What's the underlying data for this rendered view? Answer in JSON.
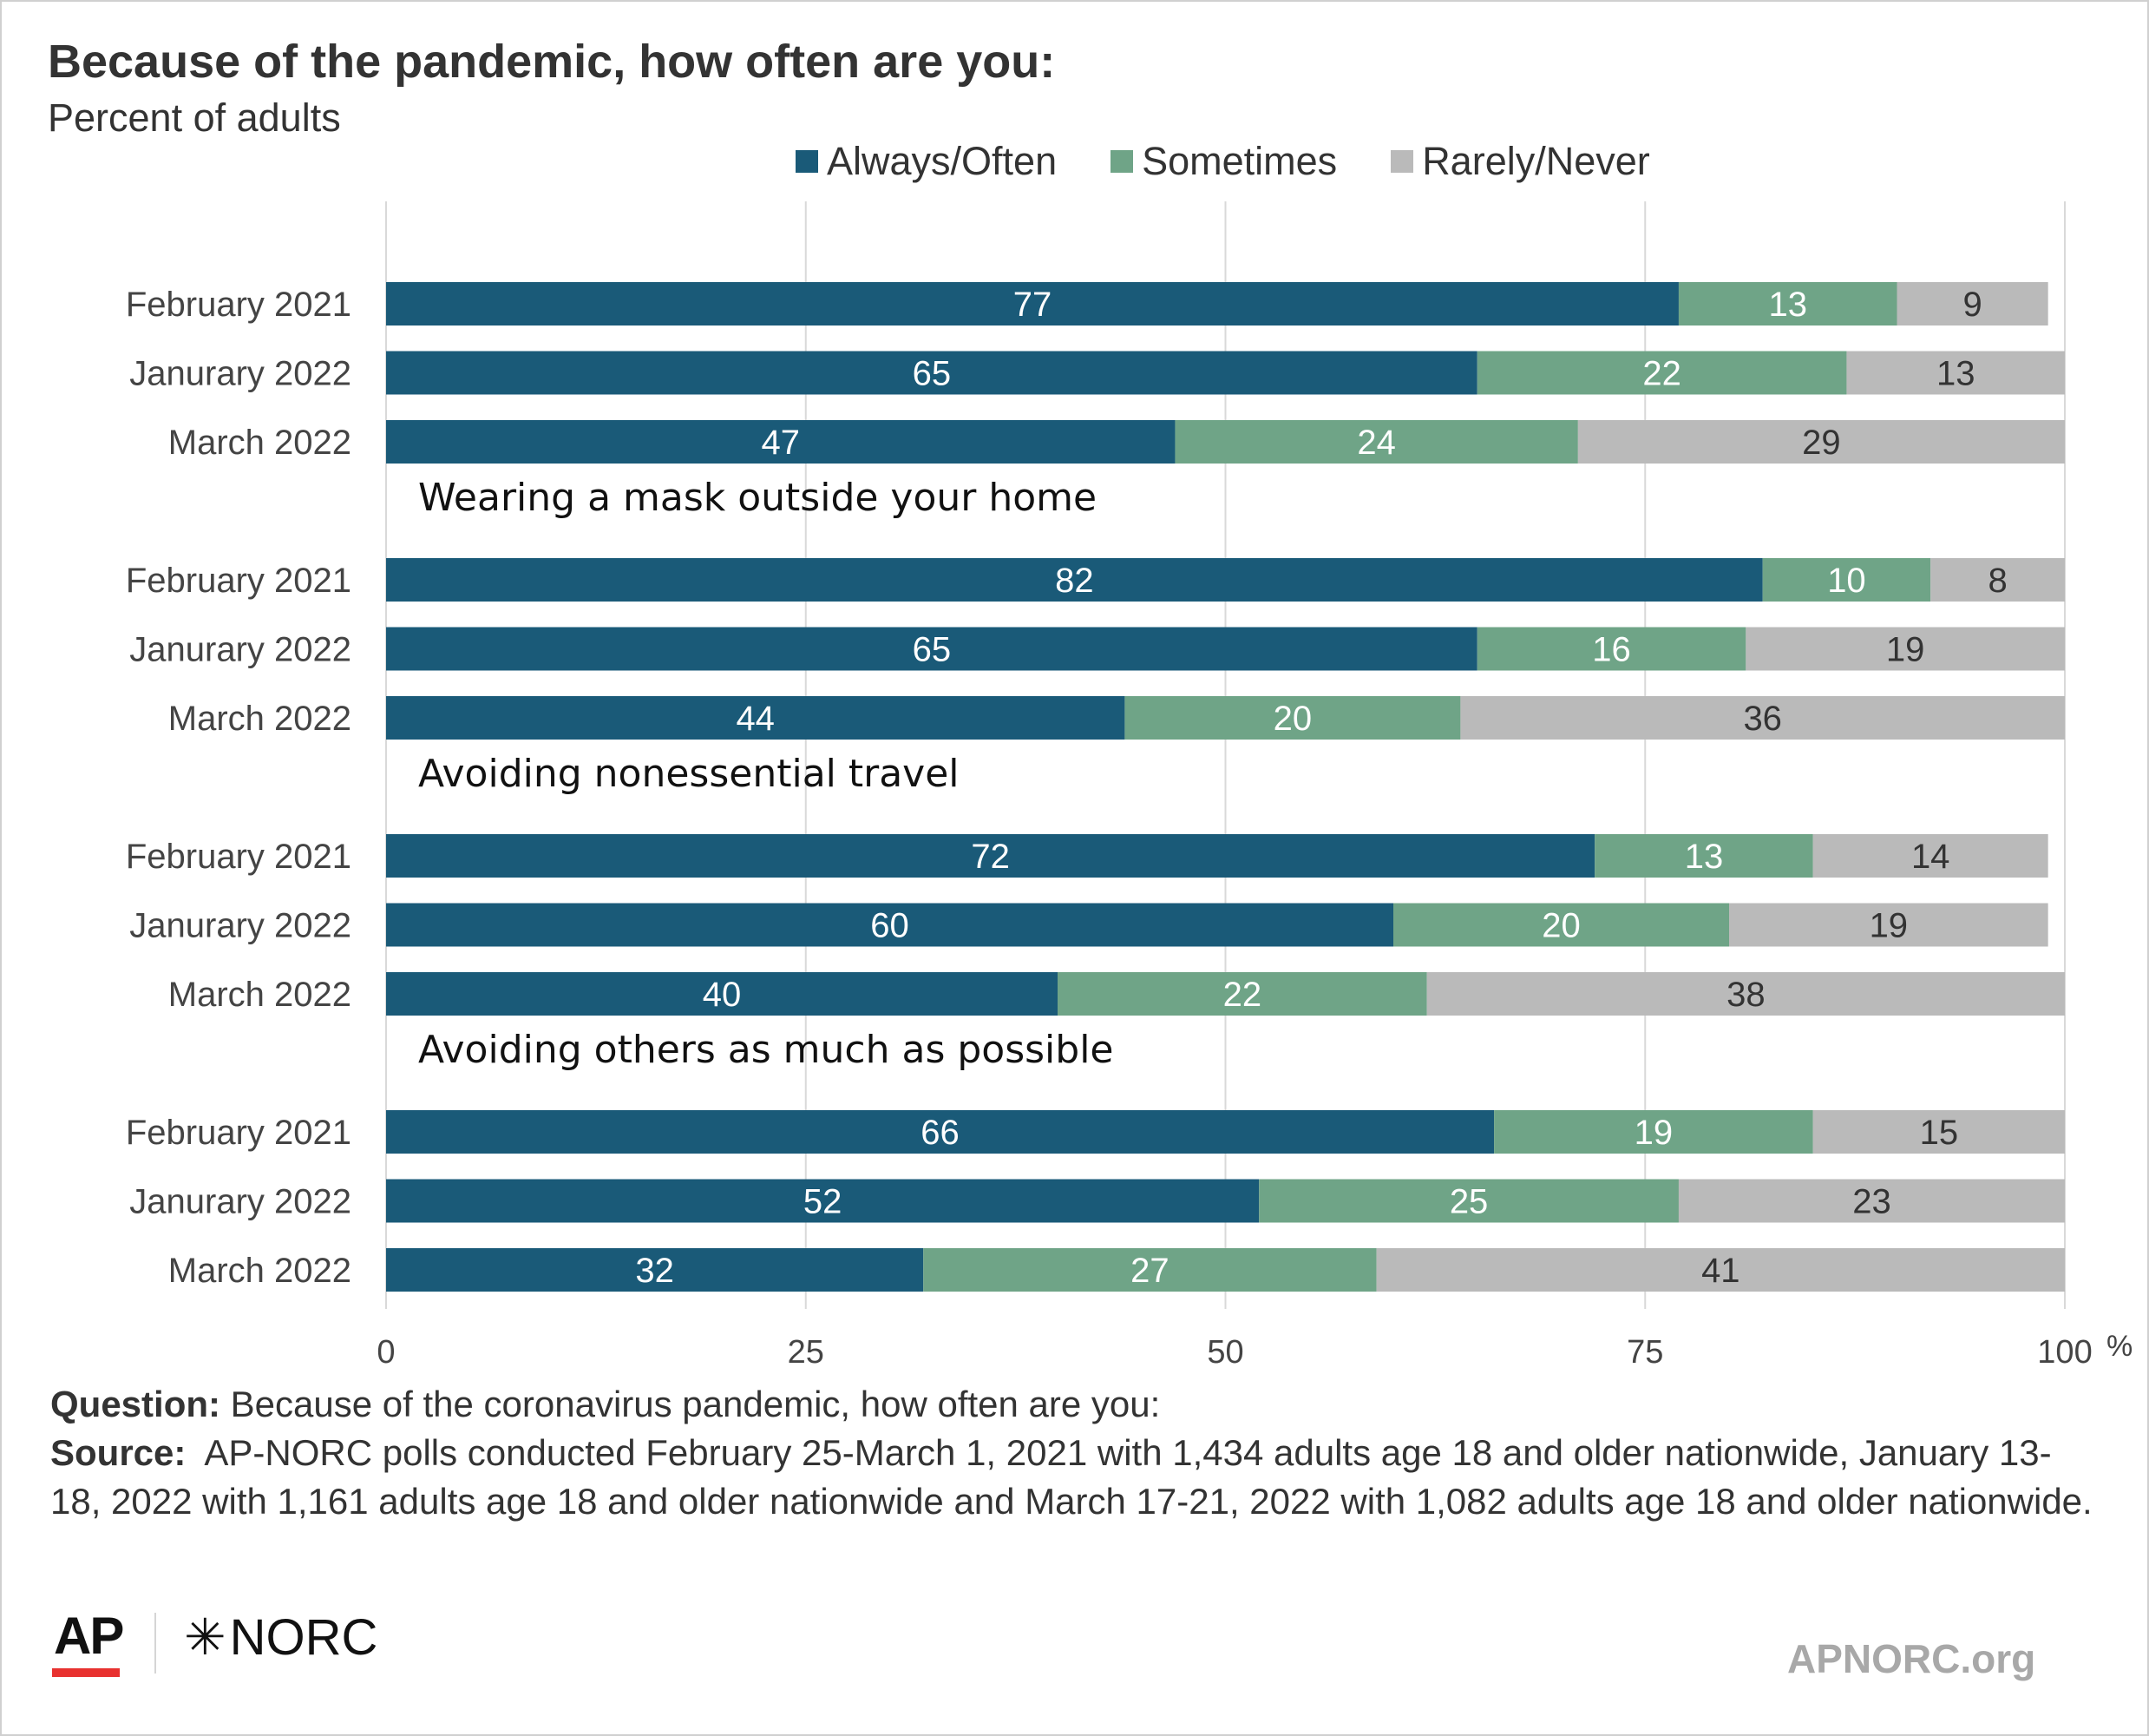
{
  "title": "Because of the pandemic, how often are you:",
  "subtitle": "Percent of adults",
  "colors": {
    "always": "#1a5a78",
    "sometimes": "#6fa487",
    "rarely": "#bababa",
    "grid": "#d9d9d9"
  },
  "chart_data": {
    "type": "bar",
    "orientation": "horizontal",
    "stacked": true,
    "series_names": [
      "Always/Often",
      "Sometimes",
      "Rarely/Never"
    ],
    "xlim": [
      0,
      100
    ],
    "x_ticks": [
      "0",
      "25",
      "50",
      "75",
      "100"
    ],
    "x_unit": "%",
    "legend_position": "top",
    "grid": true,
    "groups": [
      {
        "label": "",
        "rows": [
          {
            "category": "February 2021",
            "values": [
              77,
              13,
              9
            ]
          },
          {
            "category": "Janurary 2022",
            "values": [
              65,
              22,
              13
            ]
          },
          {
            "category": "March 2022",
            "values": [
              47,
              24,
              29
            ]
          }
        ]
      },
      {
        "label": "Wearing a mask outside your home",
        "rows": [
          {
            "category": "February 2021",
            "values": [
              82,
              10,
              8
            ]
          },
          {
            "category": "Janurary 2022",
            "values": [
              65,
              16,
              19
            ]
          },
          {
            "category": "March 2022",
            "values": [
              44,
              20,
              36
            ]
          }
        ]
      },
      {
        "label": "Avoiding nonessential travel",
        "rows": [
          {
            "category": "February 2021",
            "values": [
              72,
              13,
              14
            ]
          },
          {
            "category": "Janurary 2022",
            "values": [
              60,
              20,
              19
            ]
          },
          {
            "category": "March 2022",
            "values": [
              40,
              22,
              38
            ]
          }
        ]
      },
      {
        "label": "Avoiding others as much as possible",
        "rows": [
          {
            "category": "February 2021",
            "values": [
              66,
              19,
              15
            ]
          },
          {
            "category": "Janurary 2022",
            "values": [
              52,
              25,
              23
            ]
          },
          {
            "category": "March 2022",
            "values": [
              32,
              27,
              41
            ]
          }
        ]
      }
    ]
  },
  "footer": {
    "question_label": "Question:",
    "question_text": " Because of the coronavirus pandemic, how often are you:",
    "source_label": "Source:",
    "source_text": "  AP-NORC polls conducted February 25-March 1, 2021 with 1,434 adults age 18 and older nationwide, January 13-18, 2022 with 1,161 adults age 18 and older nationwide and March 17-21, 2022 with 1,082 adults age 18 and older nationwide."
  },
  "logos": {
    "ap": "AP",
    "norc": "NORC",
    "norc_star": "✳"
  },
  "site": "APNORC.org"
}
